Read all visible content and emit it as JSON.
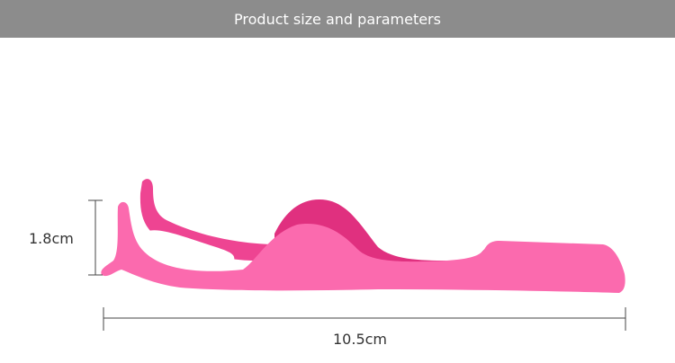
{
  "header": {
    "title": "Product size and parameters"
  },
  "dimensions": {
    "height": "1.8cm",
    "length": "10.5cm"
  },
  "colors": {
    "header": "#8c8c8c",
    "product": "#f7479a",
    "product_shade": "#e83585"
  }
}
